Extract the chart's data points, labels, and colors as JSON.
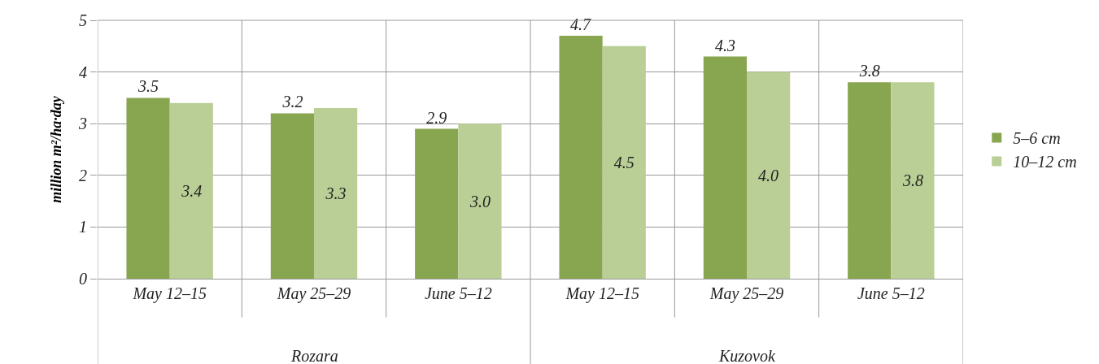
{
  "chart_data": {
    "type": "bar",
    "ylabel": "million m²/ha·day",
    "categories": [
      "May 12–15",
      "May 25–29",
      "June 5–12",
      "May 12–15",
      "May 25–29",
      "June 5–12"
    ],
    "series": [
      {
        "name": "5–6 cm",
        "color": "#88a54f",
        "values": [
          3.5,
          3.2,
          2.9,
          4.7,
          4.3,
          3.8
        ],
        "value_labels": [
          "3.5",
          "3.2",
          "2.9",
          "4.7",
          "4.3",
          "3.8"
        ]
      },
      {
        "name": "10–12 cm",
        "color": "#b9cf96",
        "values": [
          3.4,
          3.3,
          3.0,
          4.5,
          4.0,
          3.8
        ],
        "value_labels": [
          "3.4",
          "3.3",
          "3.0",
          "4.5",
          "4.0",
          "3.8"
        ]
      }
    ],
    "annotations": [
      "Rozara",
      "Kuzovok"
    ],
    "ylim": [
      0,
      5
    ],
    "yticks": [
      0,
      1,
      2,
      3,
      4,
      5
    ],
    "grid": true,
    "legend": "right"
  }
}
